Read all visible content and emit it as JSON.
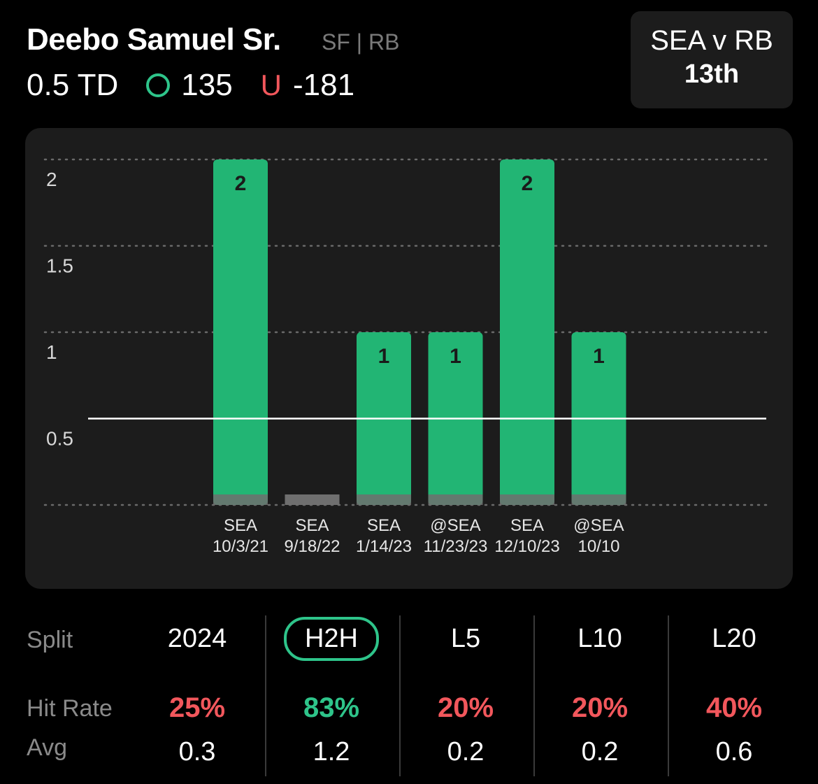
{
  "player": {
    "name": "Deebo Samuel Sr.",
    "team_pos": "SF | RB"
  },
  "prop": {
    "line": "0.5 TD",
    "over_symbol": "O",
    "over_odds": "135",
    "under_symbol": "U",
    "under_odds": "-181",
    "over_color": "#2ec48a",
    "under_color": "#f2575c"
  },
  "matchup": {
    "title": "SEA v RB",
    "rank": "13th"
  },
  "chart_data": {
    "type": "bar",
    "categories": [
      [
        "SEA",
        "10/3/21"
      ],
      [
        "SEA",
        "9/18/22"
      ],
      [
        "SEA",
        "1/14/23"
      ],
      [
        "@SEA",
        "11/23/23"
      ],
      [
        "SEA",
        "12/10/23"
      ],
      [
        "@SEA",
        "10/10"
      ]
    ],
    "values": [
      2,
      0,
      1,
      1,
      2,
      1
    ],
    "data_labels": [
      "2",
      "",
      "1",
      "1",
      "2",
      "1"
    ],
    "ylim": [
      0,
      2
    ],
    "yticks": [
      {
        "value": 2,
        "label": "2"
      },
      {
        "value": 1.5,
        "label": "1.5"
      },
      {
        "value": 1,
        "label": "1"
      },
      {
        "value": 0.5,
        "label": "0.5"
      }
    ],
    "threshold": 0.5,
    "grid": true,
    "bar_color": "#22b574",
    "zero_bar_color": "#6f6f6f"
  },
  "stats": {
    "labels": {
      "split": "Split",
      "hit_rate": "Hit Rate",
      "avg": "Avg"
    },
    "columns": [
      {
        "split": "2024",
        "hit_rate": "25%",
        "avg": "0.3",
        "hit_color": "#f2575c",
        "selected": false
      },
      {
        "split": "H2H",
        "hit_rate": "83%",
        "avg": "1.2",
        "hit_color": "#2ec48a",
        "selected": true
      },
      {
        "split": "L5",
        "hit_rate": "20%",
        "avg": "0.2",
        "hit_color": "#f2575c",
        "selected": false
      },
      {
        "split": "L10",
        "hit_rate": "20%",
        "avg": "0.2",
        "hit_color": "#f2575c",
        "selected": false
      },
      {
        "split": "L20",
        "hit_rate": "40%",
        "avg": "0.6",
        "hit_color": "#f2575c",
        "selected": false
      }
    ]
  }
}
